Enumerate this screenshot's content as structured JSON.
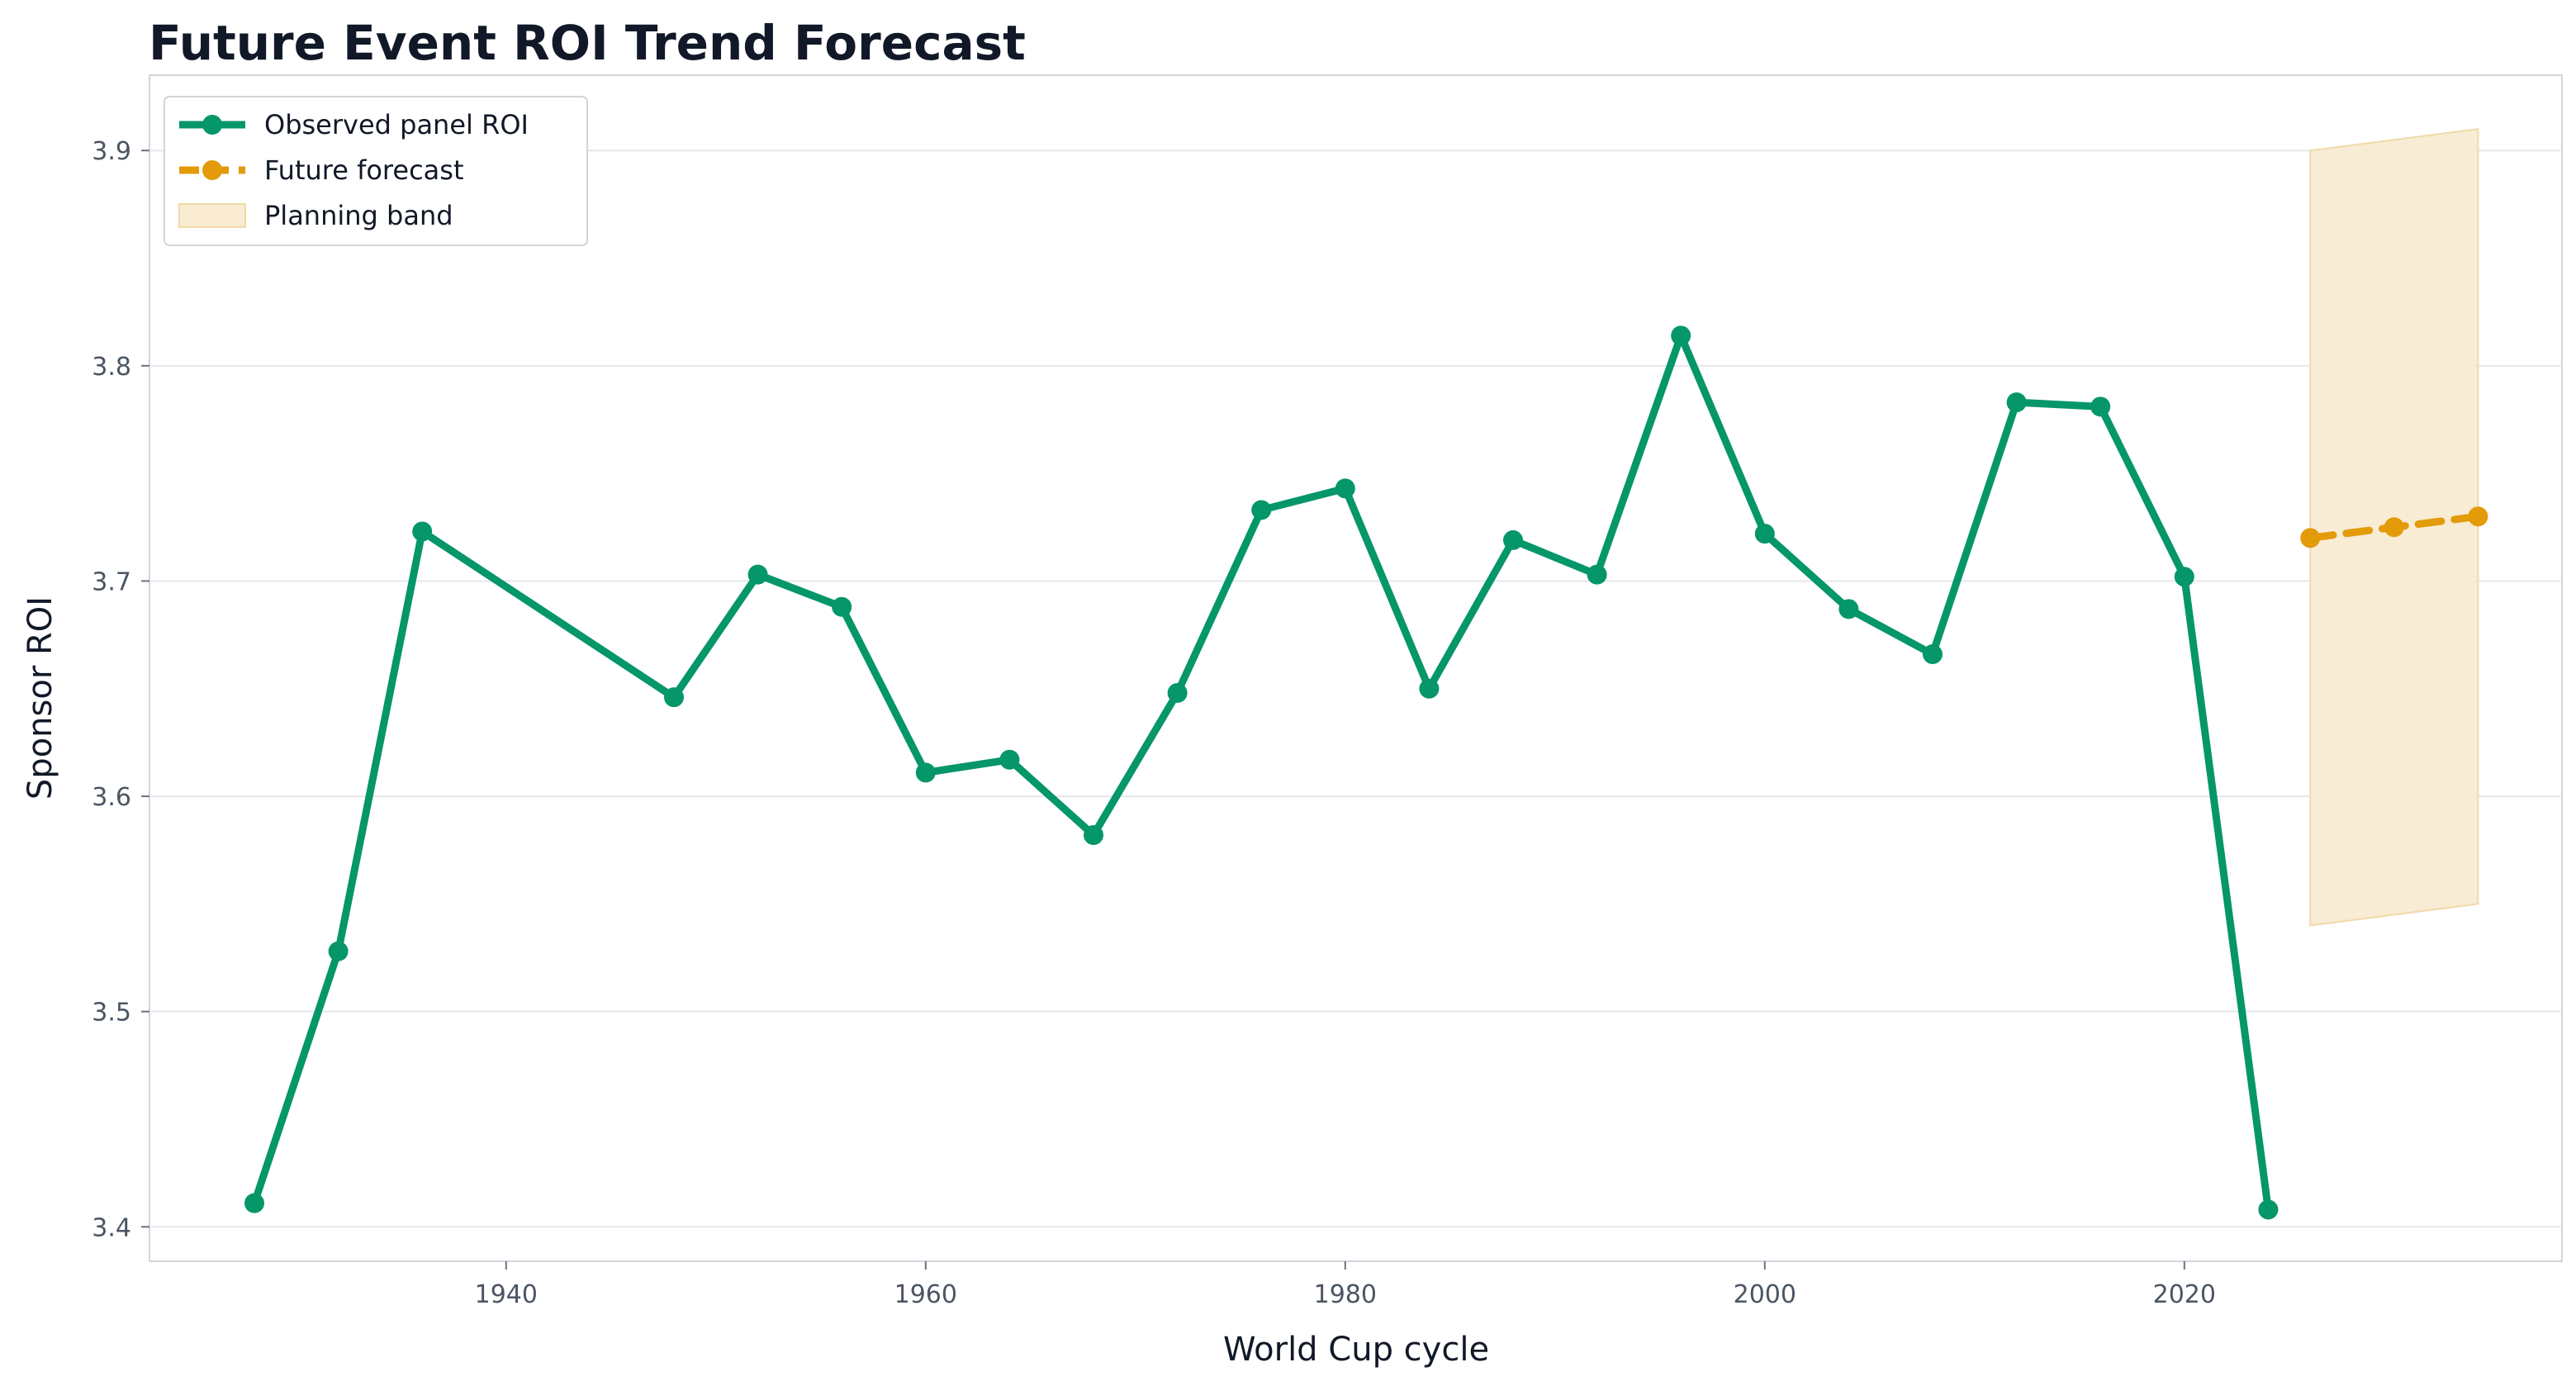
{
  "chart_data": {
    "type": "line",
    "title": "Future Event ROI Trend Forecast",
    "xlabel": "World Cup cycle",
    "ylabel": "Sponsor ROI",
    "xlim": [
      1923,
      2038
    ],
    "ylim": [
      3.384,
      3.935
    ],
    "x_ticks": [
      1940,
      1960,
      1980,
      2000,
      2020
    ],
    "y_ticks": [
      3.4,
      3.5,
      3.6,
      3.7,
      3.8,
      3.9
    ],
    "x_tick_labels": [
      "1940",
      "1960",
      "1980",
      "2000",
      "2020"
    ],
    "y_tick_labels": [
      "3.4",
      "3.5",
      "3.6",
      "3.7",
      "3.8",
      "3.9"
    ],
    "grid": "horizontal",
    "legend_position": "top-left",
    "series": [
      {
        "name": "Observed panel ROI",
        "color": "#059669",
        "style": "solid",
        "x": [
          1928,
          1932,
          1936,
          1948,
          1952,
          1956,
          1960,
          1964,
          1968,
          1972,
          1976,
          1980,
          1984,
          1988,
          1992,
          1996,
          2000,
          2004,
          2008,
          2012,
          2016,
          2020,
          2024
        ],
        "y": [
          3.411,
          3.528,
          3.723,
          3.646,
          3.703,
          3.688,
          3.611,
          3.617,
          3.582,
          3.648,
          3.733,
          3.743,
          3.65,
          3.719,
          3.703,
          3.814,
          3.722,
          3.687,
          3.666,
          3.783,
          3.781,
          3.702,
          3.408
        ]
      },
      {
        "name": "Future forecast",
        "color": "#e39b0a",
        "style": "dashed",
        "x": [
          2026,
          2030,
          2034
        ],
        "y": [
          3.72,
          3.725,
          3.73
        ]
      }
    ],
    "bands": [
      {
        "name": "Planning band",
        "color": "#f9ecd3",
        "x": [
          2026,
          2034
        ],
        "lower": [
          3.54,
          3.55
        ],
        "upper": [
          3.9,
          3.91
        ]
      }
    ]
  }
}
